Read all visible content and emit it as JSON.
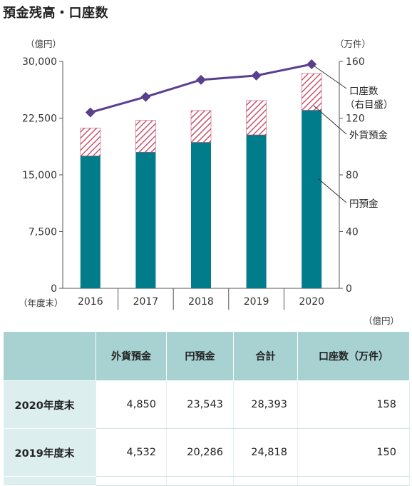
{
  "page_title": "預金残高・口座数",
  "chart_data": {
    "type": "bar",
    "categories": [
      "2016",
      "2017",
      "2018",
      "2019",
      "2020"
    ],
    "stacked": true,
    "series": [
      {
        "name": "円預金",
        "values": [
          17500,
          18000,
          19300,
          20286,
          23543
        ],
        "color": "#007c8a"
      },
      {
        "name": "外貨預金",
        "values": [
          3700,
          4200,
          4200,
          4532,
          4850
        ],
        "color": "#c8546e",
        "pattern": "hatched"
      }
    ],
    "line_series": {
      "name": "口座数（右目盛）",
      "values": [
        124,
        135,
        147,
        150,
        158
      ],
      "color": "#5a3f8e",
      "marker": "diamond"
    },
    "y_left": {
      "unit": "（億円）",
      "min": 0,
      "max": 30000,
      "ticks": [
        "0",
        "7,500",
        "15,000",
        "22,500",
        "30,000"
      ]
    },
    "y_right": {
      "unit": "（万件）",
      "min": 0,
      "max": 160,
      "ticks": [
        "0",
        "40",
        "80",
        "120",
        "160"
      ]
    },
    "x_unit": "（年度末）",
    "annotations": {
      "line1": "口座数",
      "line2": "（右目盛）",
      "foreign": "外貨預金",
      "yen": "円預金"
    }
  },
  "table": {
    "unit": "（億円）",
    "headers": [
      "",
      "外貨預金",
      "円預金",
      "合計",
      "口座数（万件）"
    ],
    "rows": [
      {
        "label": "2020年度末",
        "foreign": "4,850",
        "yen": "23,543",
        "total": "28,393",
        "accounts": "158"
      },
      {
        "label": "2019年度末",
        "foreign": "4,532",
        "yen": "20,286",
        "total": "24,818",
        "accounts": "150"
      }
    ]
  }
}
